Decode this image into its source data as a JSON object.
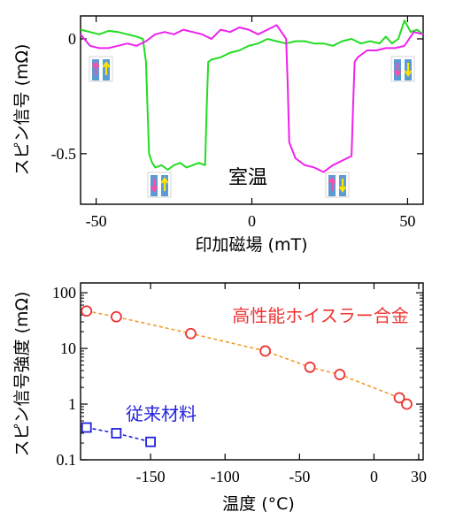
{
  "chart_data": [
    {
      "type": "line",
      "xlabel": "印加磁場 (mT)",
      "ylabel": "スピン信号 (mΩ)",
      "xlim": [
        -55,
        55
      ],
      "ylim": [
        -0.72,
        0.1
      ],
      "xticks": [
        -50,
        0,
        50
      ],
      "yticks": [
        0,
        -0.5
      ],
      "xtick_labels": [
        "-50",
        "0",
        "50"
      ],
      "ytick_labels": [
        "0",
        "-0.5"
      ],
      "annotation": "室温",
      "series": [
        {
          "color": "#22dd22",
          "x": [
            -55,
            -52,
            -49,
            -46,
            -43,
            -40,
            -37,
            -35,
            -34,
            -33.5,
            -33,
            -32,
            -31,
            -29,
            -27,
            -25,
            -23,
            -21,
            -19,
            -17,
            -15,
            -14.5,
            -14,
            -13,
            -10,
            -7,
            -4,
            -1,
            2,
            5,
            8,
            11,
            14,
            17,
            20,
            23,
            26,
            29,
            32,
            35,
            38,
            41,
            43,
            45,
            47,
            49,
            51,
            53,
            55
          ],
          "y": [
            0.04,
            0.03,
            0.02,
            0.035,
            0.03,
            0.02,
            0.01,
            0.0,
            -0.1,
            -0.3,
            -0.5,
            -0.54,
            -0.56,
            -0.55,
            -0.57,
            -0.55,
            -0.54,
            -0.56,
            -0.55,
            -0.54,
            -0.55,
            -0.3,
            -0.1,
            -0.09,
            -0.08,
            -0.06,
            -0.05,
            -0.03,
            -0.02,
            0.0,
            -0.01,
            -0.02,
            -0.01,
            -0.01,
            -0.02,
            -0.02,
            -0.03,
            -0.01,
            0.0,
            -0.02,
            -0.01,
            -0.02,
            0.01,
            -0.02,
            0.0,
            0.08,
            0.03,
            0.04,
            0.02
          ]
        },
        {
          "color": "#ee22ee",
          "x": [
            -55,
            -52,
            -49,
            -46,
            -43,
            -40,
            -37,
            -34,
            -31,
            -28,
            -25,
            -22,
            -19,
            -16,
            -13,
            -10,
            -7,
            -4,
            -1,
            2,
            5,
            8,
            10,
            11,
            11.5,
            12,
            14,
            17,
            20,
            23,
            26,
            29,
            32,
            32.5,
            33,
            34,
            37,
            40,
            43,
            46,
            49,
            52,
            55
          ],
          "y": [
            0.02,
            -0.03,
            -0.04,
            -0.04,
            -0.03,
            -0.02,
            -0.03,
            -0.01,
            0.02,
            0.03,
            0.02,
            0.04,
            0.03,
            0.02,
            0.0,
            0.04,
            0.03,
            0.05,
            0.04,
            0.02,
            0.04,
            0.06,
            0.02,
            0.0,
            -0.2,
            -0.45,
            -0.52,
            -0.55,
            -0.56,
            -0.58,
            -0.55,
            -0.53,
            -0.51,
            -0.3,
            -0.1,
            -0.08,
            -0.05,
            -0.05,
            -0.04,
            -0.04,
            -0.03,
            0.03,
            0.02
          ]
        }
      ]
    },
    {
      "type": "scatter",
      "xlabel": "温度 (°C)",
      "ylabel": "スピン信号強度 (mΩ)",
      "ylog": true,
      "xlim": [
        -197,
        33
      ],
      "ylim": [
        0.1,
        150
      ],
      "xticks": [
        -150,
        -100,
        -50,
        0,
        30
      ],
      "xtick_labels": [
        "-150",
        "-100",
        "-50",
        "0",
        "30"
      ],
      "yticks": [
        0.1,
        1,
        10,
        100
      ],
      "ytick_labels": [
        "0.1",
        "1",
        "10",
        "100"
      ],
      "series": [
        {
          "name": "高性能ホイスラー合金",
          "color": "#ee3333",
          "marker": "circle",
          "x": [
            -193,
            -173,
            -123,
            -73,
            -43,
            -23,
            17,
            22
          ],
          "y": [
            47,
            37,
            18.5,
            9,
            4.6,
            3.4,
            1.3,
            1.0
          ]
        },
        {
          "name": "従来材料",
          "color": "#2222dd",
          "marker": "square",
          "x": [
            -193,
            -173,
            -150
          ],
          "y": [
            0.38,
            0.3,
            0.21
          ]
        }
      ]
    }
  ]
}
